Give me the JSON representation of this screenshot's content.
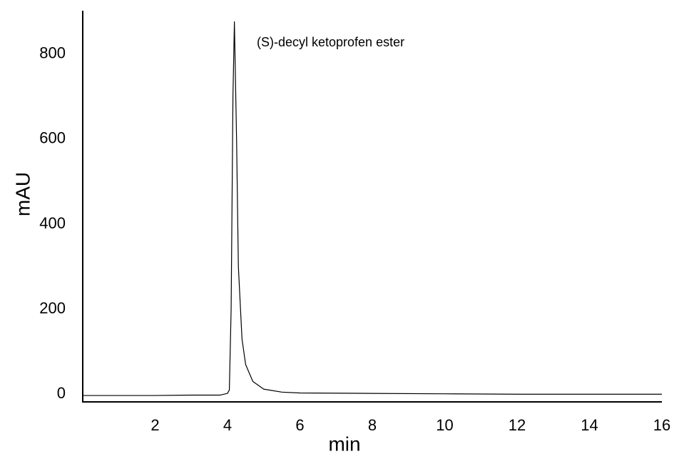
{
  "chart_data": {
    "type": "line",
    "annotation": "(S)-decyl ketoprofen ester",
    "xlabel": "min",
    "ylabel": "mAU",
    "x": [
      0,
      1,
      2,
      3,
      3.8,
      4.0,
      4.05,
      4.1,
      4.15,
      4.19,
      4.25,
      4.3,
      4.4,
      4.5,
      4.7,
      5.0,
      5.5,
      6,
      8,
      10,
      12,
      16
    ],
    "values": [
      -3,
      -3,
      -3,
      -2,
      -2,
      2,
      10,
      200,
      700,
      876,
      600,
      300,
      130,
      70,
      30,
      12,
      5,
      3,
      2,
      1,
      0,
      0
    ],
    "color": "#000000",
    "xlim": [
      0,
      16
    ],
    "xticks": [
      2,
      4,
      6,
      8,
      10,
      12,
      14,
      16
    ],
    "ylim": [
      -18,
      902
    ],
    "yticks": [
      0,
      200,
      400,
      600,
      800
    ],
    "grid": false
  }
}
